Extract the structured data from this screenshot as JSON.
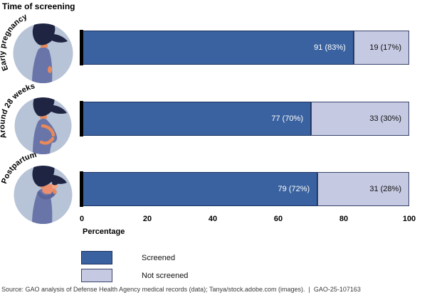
{
  "title": "Time of screening",
  "chart_data": {
    "type": "bar",
    "stacked": true,
    "orientation": "horizontal",
    "title": "Time of screening",
    "categories": [
      "Early pregnancy",
      "Around 28 weeks",
      "Postpartum"
    ],
    "series": [
      {
        "name": "Screened",
        "color": "#3A62A0",
        "values": [
          91,
          77,
          79
        ],
        "percents": [
          83,
          70,
          72
        ],
        "labels": [
          "91 (83%)",
          "77 (70%)",
          "79 (72%)"
        ]
      },
      {
        "name": "Not screened",
        "color": "#C5C9E2",
        "values": [
          19,
          33,
          31
        ],
        "percents": [
          17,
          30,
          28
        ],
        "labels": [
          "19 (17%)",
          "33 (30%)",
          "31 (28%)"
        ]
      }
    ],
    "xlabel": "Percentage",
    "x_ticks": [
      0,
      20,
      40,
      60,
      80,
      100
    ],
    "xlim": [
      0,
      100
    ],
    "grid": false,
    "legend_position": "bottom-left"
  },
  "legend": {
    "items": [
      {
        "label": "Screened",
        "color": "#3A62A0"
      },
      {
        "label": "Not screened",
        "color": "#C5C9E2"
      }
    ]
  },
  "illustrations": {
    "colors": {
      "circle_bg": "#B7C3D7",
      "hair": "#1E2441",
      "dress": "#6974A8",
      "skin": "#E8895C",
      "baby_wrap": "#ED8E6E",
      "baby_skin": "#F2A684"
    },
    "names": [
      "early-pregnancy-woman",
      "pregnant-woman-28-weeks",
      "mother-holding-newborn"
    ]
  },
  "footer": "Source: GAO analysis of Defense Health Agency medical records (data); Tanya/stock.adobe.com (images).  |  GAO-25-107163"
}
